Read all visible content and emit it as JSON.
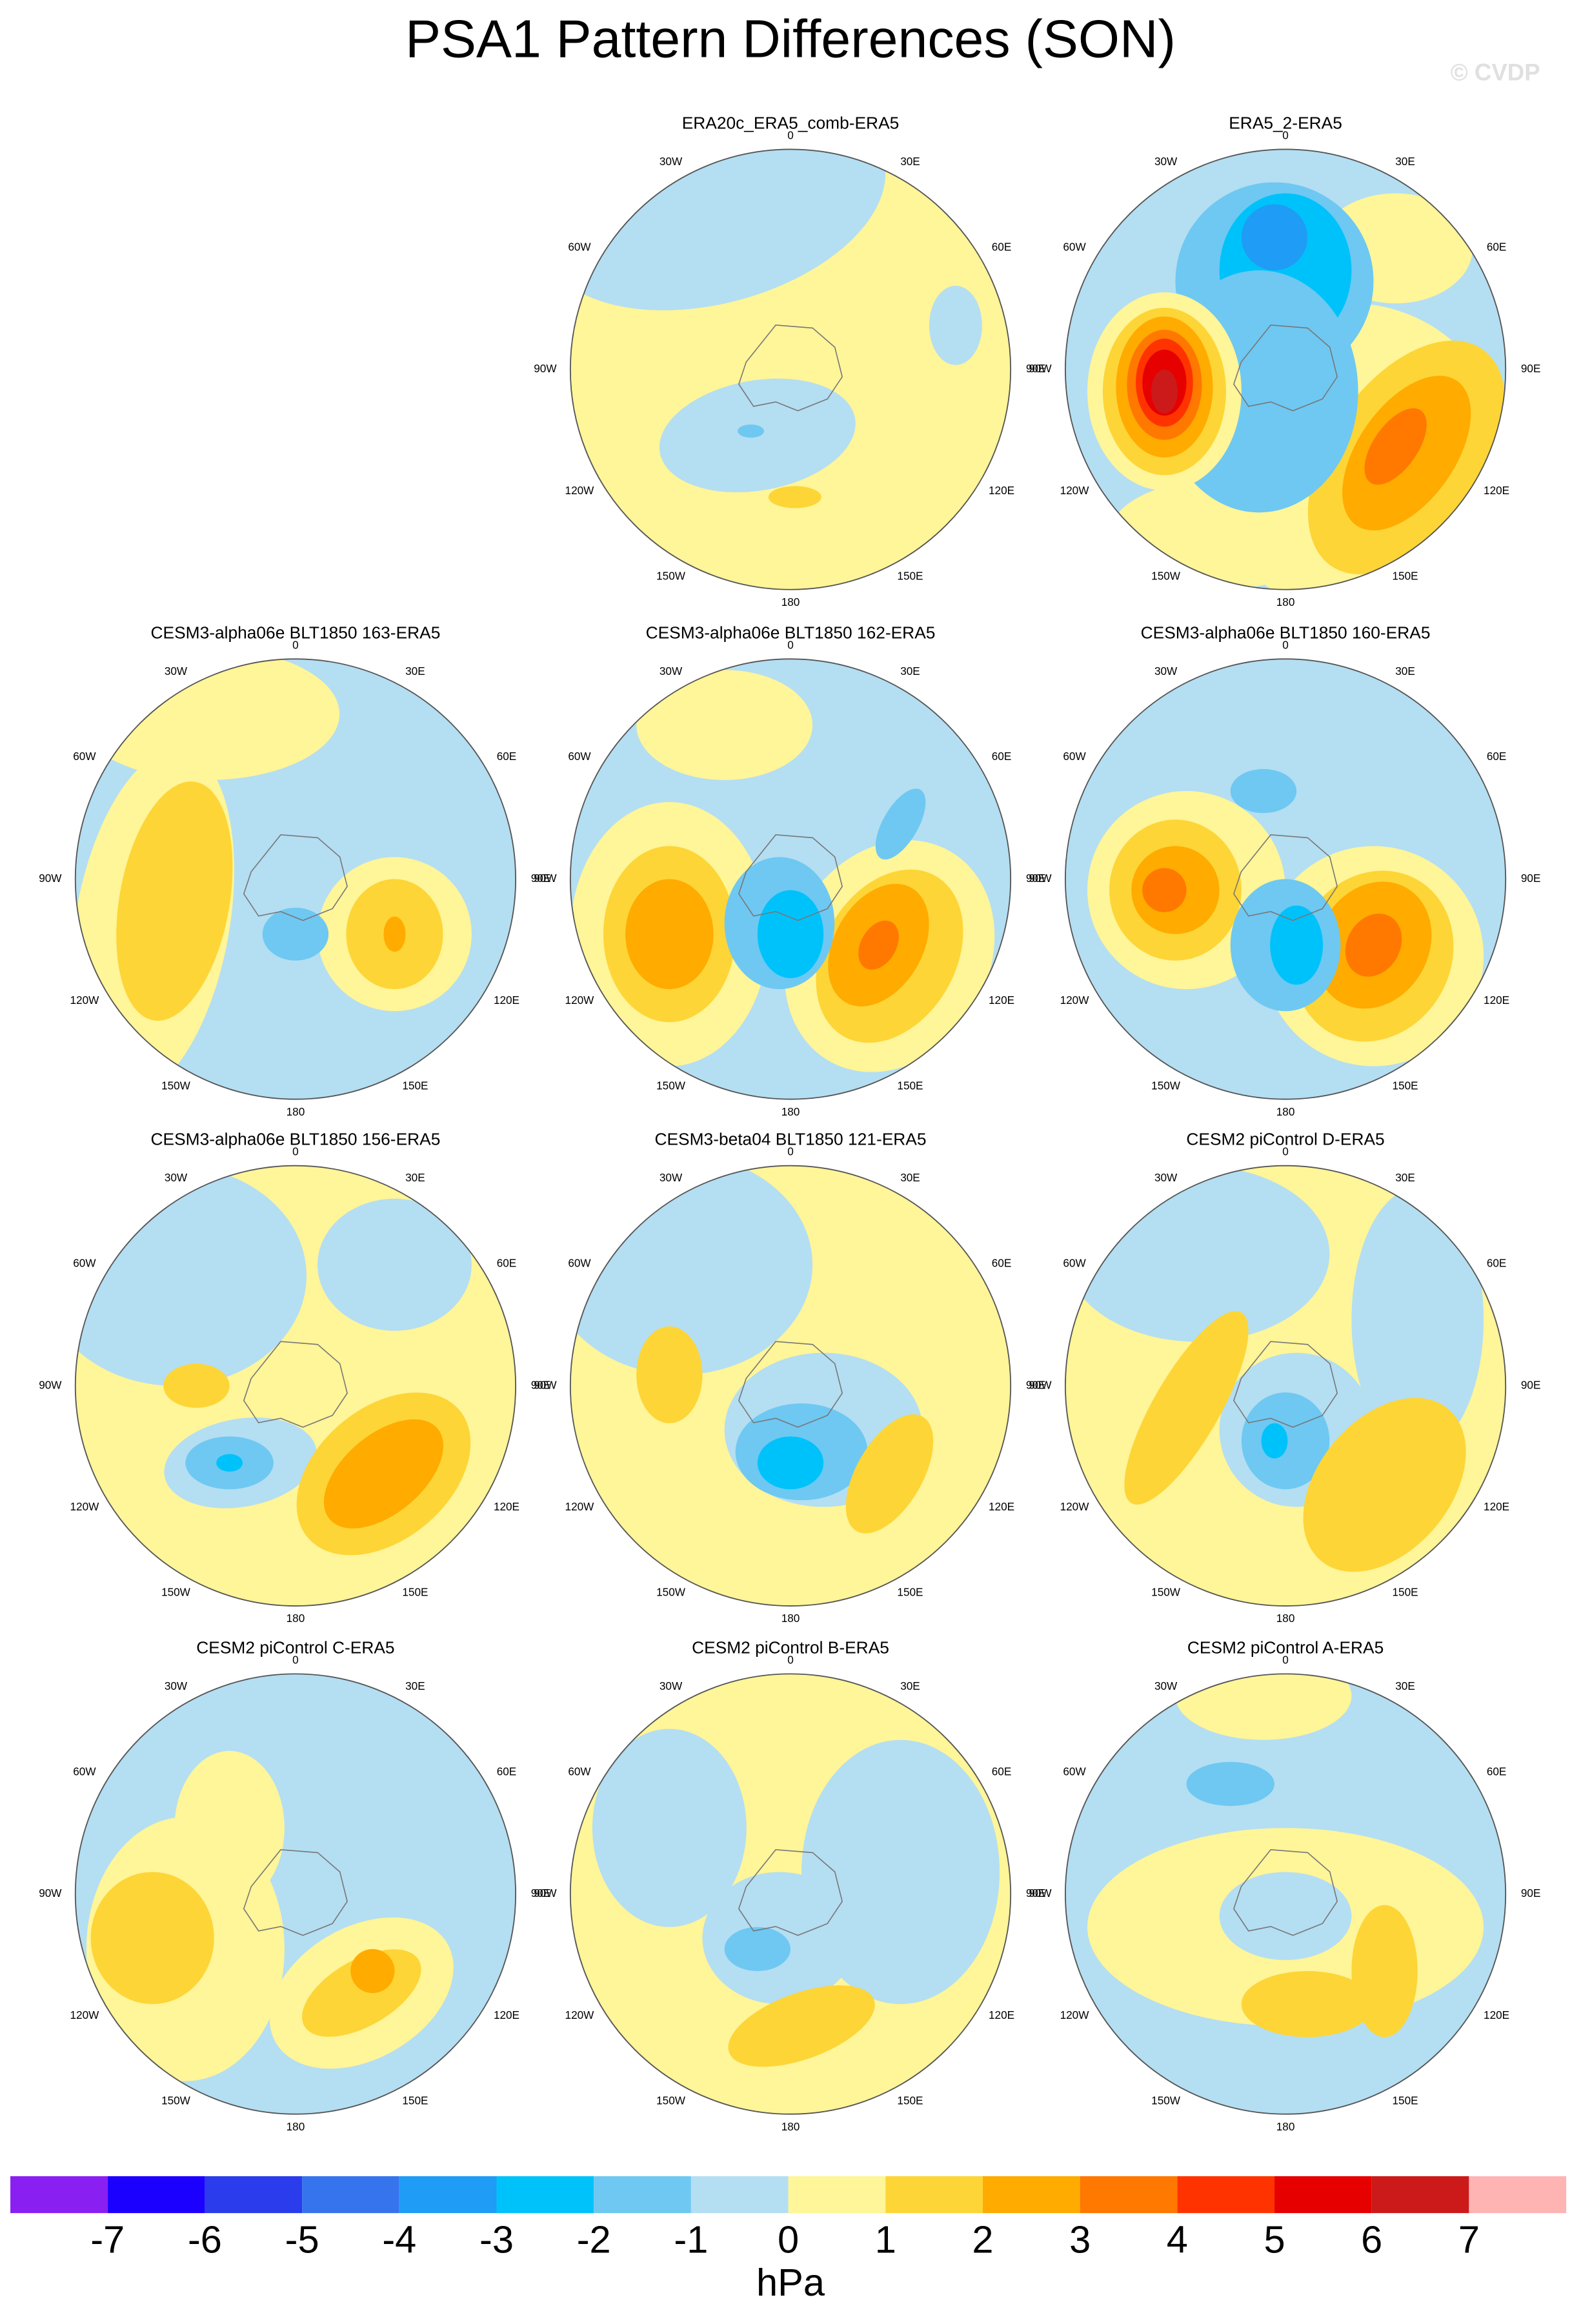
{
  "title": "PSA1 Pattern Differences (SON)",
  "watermark": "© CVDP",
  "lon_labels": [
    "0",
    "30E",
    "60E",
    "90E",
    "120E",
    "150E",
    "180",
    "150W",
    "120W",
    "90W",
    "60W",
    "30W"
  ],
  "panels": [
    {
      "title": "ERA20c_ERA5_comb-ERA5"
    },
    {
      "title": "ERA5_2-ERA5"
    },
    {
      "title": "CESM3-alpha06e BLT1850 163-ERA5"
    },
    {
      "title": "CESM3-alpha06e BLT1850 162-ERA5"
    },
    {
      "title": "CESM3-alpha06e BLT1850 160-ERA5"
    },
    {
      "title": "CESM3-alpha06e BLT1850 156-ERA5"
    },
    {
      "title": "CESM3-beta04 BLT1850 121-ERA5"
    },
    {
      "title": "CESM2 piControl D-ERA5"
    },
    {
      "title": "CESM2 piControl C-ERA5"
    },
    {
      "title": "CESM2 piControl B-ERA5"
    },
    {
      "title": "CESM2 piControl A-ERA5"
    }
  ],
  "colorbar": {
    "levels": [
      -7,
      -6,
      -5,
      -4,
      -3,
      -2,
      -1,
      0,
      1,
      2,
      3,
      4,
      5,
      6,
      7
    ],
    "colors": [
      "#8a1ff2",
      "#1c00ff",
      "#2a3ceb",
      "#3674ee",
      "#1f9cf5",
      "#00c2fa",
      "#6ec8f2",
      "#b4def2",
      "#fff599",
      "#fdd536",
      "#ffab00",
      "#ff7800",
      "#ff3300",
      "#e60000",
      "#cc1a1a",
      "#ffb4b4"
    ],
    "units": "hPa"
  }
}
